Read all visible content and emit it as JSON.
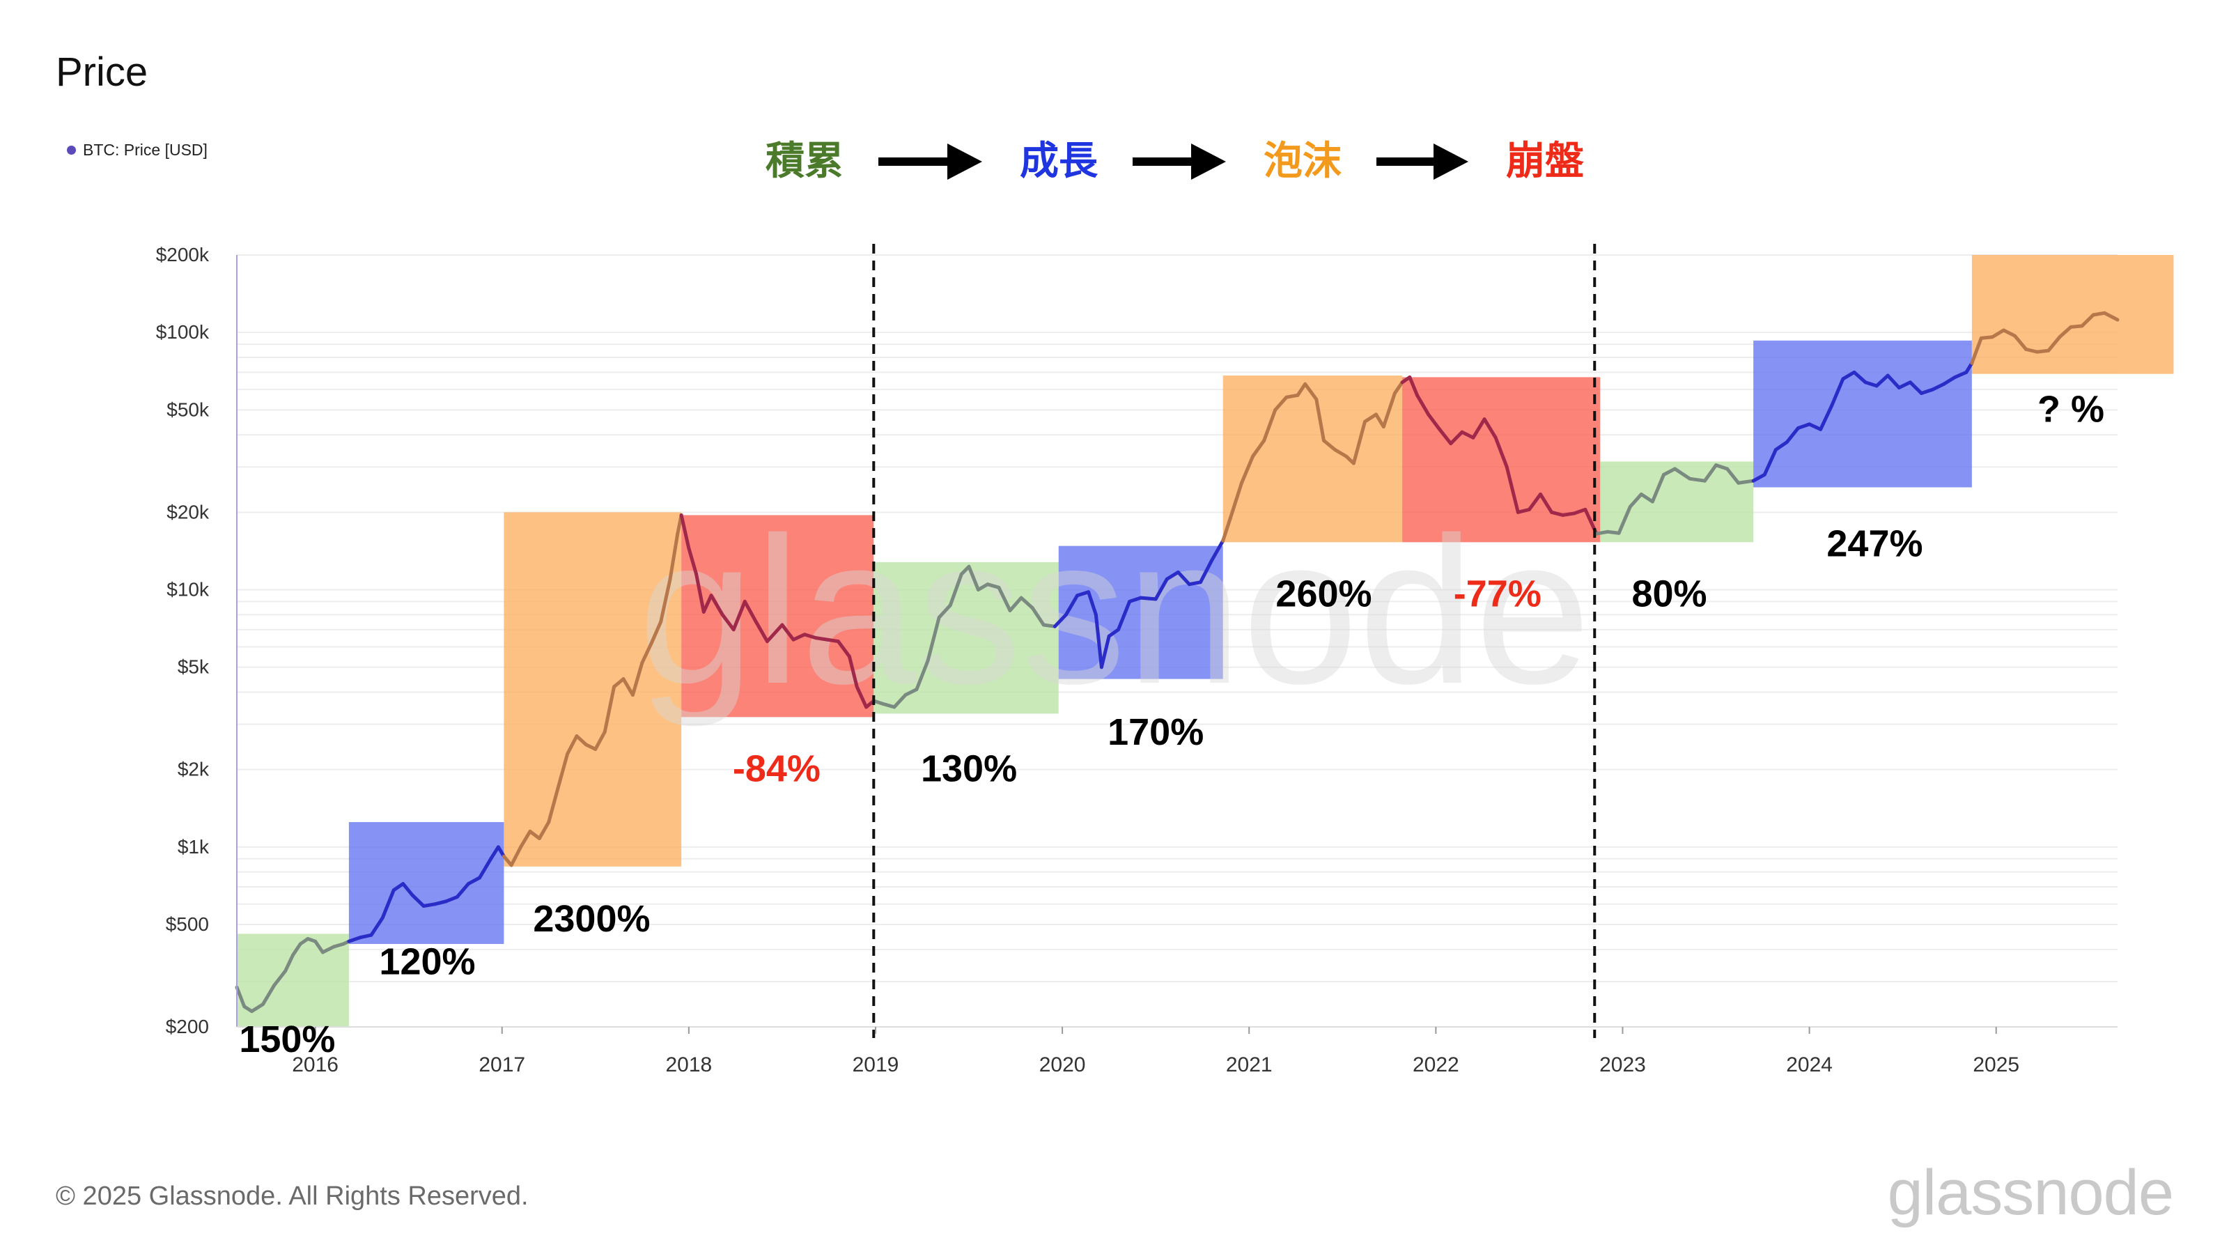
{
  "header": {
    "title": "Price",
    "legend_label": "BTC: Price [USD]",
    "legend_color": "#5b4bb8"
  },
  "footer": {
    "copyright": "© 2025 Glassnode. All Rights Reserved.",
    "brand": "glassnode"
  },
  "chart_data": {
    "type": "line",
    "title": "Price",
    "series_name": "BTC: Price [USD]",
    "y_scale": "log",
    "ylim": [
      200,
      200000
    ],
    "y_ticks": [
      {
        "value": 200,
        "label": "$200"
      },
      {
        "value": 500,
        "label": "$500"
      },
      {
        "value": 1000,
        "label": "$1k"
      },
      {
        "value": 2000,
        "label": "$2k"
      },
      {
        "value": 5000,
        "label": "$5k"
      },
      {
        "value": 10000,
        "label": "$10k"
      },
      {
        "value": 20000,
        "label": "$20k"
      },
      {
        "value": 50000,
        "label": "$50k"
      },
      {
        "value": 100000,
        "label": "$100k"
      },
      {
        "value": 200000,
        "label": "$200k"
      }
    ],
    "xlim": [
      2015.58,
      2025.65
    ],
    "x_ticks": [
      {
        "value": 2016,
        "label": "2016"
      },
      {
        "value": 2017,
        "label": "2017"
      },
      {
        "value": 2018,
        "label": "2018"
      },
      {
        "value": 2019,
        "label": "2019"
      },
      {
        "value": 2020,
        "label": "2020"
      },
      {
        "value": 2021,
        "label": "2021"
      },
      {
        "value": 2022,
        "label": "2022"
      },
      {
        "value": 2023,
        "label": "2023"
      },
      {
        "value": 2024,
        "label": "2024"
      },
      {
        "value": 2025,
        "label": "2025"
      }
    ],
    "phase_legend": [
      {
        "label": "積累",
        "color": "#4a7a2a"
      },
      {
        "label": "成長",
        "color": "#1f35e0"
      },
      {
        "label": "泡沫",
        "color": "#f39a1d"
      },
      {
        "label": "崩盤",
        "color": "#ee2b18"
      }
    ],
    "phase_colors": {
      "accumulation": "#b8e2a0",
      "growth": "#5d6ff0",
      "bubble": "#fcae5a",
      "crash": "#f95a4a"
    },
    "line_colors": {
      "accumulation": "#7a8a80",
      "growth": "#2b2bc8",
      "bubble": "#b7774a",
      "crash": "#a0284a"
    },
    "cycle_dividers": [
      2018.99,
      2022.85
    ],
    "phases": [
      {
        "phase": "accumulation",
        "x0": 2015.58,
        "x1": 2016.18,
        "y_low": 200,
        "y_high": 460,
        "pct": "150%",
        "pct_color": "#000000",
        "label_x": 2015.85,
        "label_y": 160
      },
      {
        "phase": "growth",
        "x0": 2016.18,
        "x1": 2017.01,
        "y_low": 420,
        "y_high": 1250,
        "pct": "120%",
        "pct_color": "#000000",
        "label_x": 2016.6,
        "label_y": 320
      },
      {
        "phase": "bubble",
        "x0": 2017.01,
        "x1": 2017.96,
        "y_low": 840,
        "y_high": 20000,
        "pct": "2300%",
        "pct_color": "#000000",
        "label_x": 2017.48,
        "label_y": 470
      },
      {
        "phase": "crash",
        "x0": 2017.96,
        "x1": 2018.99,
        "y_low": 3200,
        "y_high": 19500,
        "pct": "-84%",
        "pct_color": "#ee2b18",
        "label_x": 2018.47,
        "label_y": 1800
      },
      {
        "phase": "accumulation",
        "x0": 2018.99,
        "x1": 2019.98,
        "y_low": 3300,
        "y_high": 12800,
        "pct": "130%",
        "pct_color": "#000000",
        "label_x": 2019.5,
        "label_y": 1800
      },
      {
        "phase": "growth",
        "x0": 2019.98,
        "x1": 2020.86,
        "y_low": 4500,
        "y_high": 14800,
        "pct": "170%",
        "pct_color": "#000000",
        "label_x": 2020.5,
        "label_y": 2500
      },
      {
        "phase": "bubble",
        "x0": 2020.86,
        "x1": 2021.82,
        "y_low": 15300,
        "y_high": 68000,
        "pct": "260%",
        "pct_color": "#000000",
        "label_x": 2021.4,
        "label_y": 8600
      },
      {
        "phase": "crash",
        "x0": 2021.82,
        "x1": 2022.88,
        "y_low": 15300,
        "y_high": 67000,
        "pct": "-77%",
        "pct_color": "#ee2b18",
        "label_x": 2022.33,
        "label_y": 8600
      },
      {
        "phase": "accumulation",
        "x0": 2022.88,
        "x1": 2023.7,
        "y_low": 15300,
        "y_high": 31500,
        "pct": "80%",
        "pct_color": "#000000",
        "label_x": 2023.25,
        "label_y": 8600
      },
      {
        "phase": "growth",
        "x0": 2023.7,
        "x1": 2024.87,
        "y_low": 25000,
        "y_high": 93000,
        "pct": "247%",
        "pct_color": "#000000",
        "label_x": 2024.35,
        "label_y": 13500
      },
      {
        "phase": "bubble",
        "x0": 2024.87,
        "x1": 2025.95,
        "y_low": 69000,
        "y_high": 200000,
        "pct": "? %",
        "pct_color": "#000000",
        "label_x": 2025.4,
        "label_y": 45000
      }
    ],
    "price_series": [
      {
        "x": 2015.58,
        "y": 285
      },
      {
        "x": 2015.62,
        "y": 240
      },
      {
        "x": 2015.66,
        "y": 230
      },
      {
        "x": 2015.72,
        "y": 245
      },
      {
        "x": 2015.78,
        "y": 290
      },
      {
        "x": 2015.84,
        "y": 330
      },
      {
        "x": 2015.88,
        "y": 380
      },
      {
        "x": 2015.92,
        "y": 420
      },
      {
        "x": 2015.96,
        "y": 440
      },
      {
        "x": 2016.0,
        "y": 430
      },
      {
        "x": 2016.04,
        "y": 390
      },
      {
        "x": 2016.1,
        "y": 410
      },
      {
        "x": 2016.15,
        "y": 420
      },
      {
        "x": 2016.18,
        "y": 430
      },
      {
        "x": 2016.24,
        "y": 445
      },
      {
        "x": 2016.3,
        "y": 455
      },
      {
        "x": 2016.36,
        "y": 530
      },
      {
        "x": 2016.42,
        "y": 680
      },
      {
        "x": 2016.47,
        "y": 720
      },
      {
        "x": 2016.52,
        "y": 650
      },
      {
        "x": 2016.58,
        "y": 590
      },
      {
        "x": 2016.64,
        "y": 600
      },
      {
        "x": 2016.7,
        "y": 615
      },
      {
        "x": 2016.76,
        "y": 640
      },
      {
        "x": 2016.82,
        "y": 720
      },
      {
        "x": 2016.88,
        "y": 760
      },
      {
        "x": 2016.94,
        "y": 900
      },
      {
        "x": 2016.98,
        "y": 1000
      },
      {
        "x": 2017.01,
        "y": 920
      },
      {
        "x": 2017.05,
        "y": 850
      },
      {
        "x": 2017.1,
        "y": 1000
      },
      {
        "x": 2017.15,
        "y": 1150
      },
      {
        "x": 2017.2,
        "y": 1080
      },
      {
        "x": 2017.25,
        "y": 1250
      },
      {
        "x": 2017.3,
        "y": 1700
      },
      {
        "x": 2017.35,
        "y": 2300
      },
      {
        "x": 2017.4,
        "y": 2700
      },
      {
        "x": 2017.45,
        "y": 2500
      },
      {
        "x": 2017.5,
        "y": 2400
      },
      {
        "x": 2017.55,
        "y": 2800
      },
      {
        "x": 2017.6,
        "y": 4200
      },
      {
        "x": 2017.65,
        "y": 4500
      },
      {
        "x": 2017.7,
        "y": 3900
      },
      {
        "x": 2017.75,
        "y": 5200
      },
      {
        "x": 2017.8,
        "y": 6200
      },
      {
        "x": 2017.85,
        "y": 7500
      },
      {
        "x": 2017.9,
        "y": 11000
      },
      {
        "x": 2017.94,
        "y": 16500
      },
      {
        "x": 2017.96,
        "y": 19500
      },
      {
        "x": 2018.0,
        "y": 14500
      },
      {
        "x": 2018.04,
        "y": 11500
      },
      {
        "x": 2018.08,
        "y": 8200
      },
      {
        "x": 2018.12,
        "y": 9500
      },
      {
        "x": 2018.18,
        "y": 8000
      },
      {
        "x": 2018.24,
        "y": 7000
      },
      {
        "x": 2018.3,
        "y": 9000
      },
      {
        "x": 2018.36,
        "y": 7500
      },
      {
        "x": 2018.42,
        "y": 6300
      },
      {
        "x": 2018.5,
        "y": 7300
      },
      {
        "x": 2018.56,
        "y": 6400
      },
      {
        "x": 2018.62,
        "y": 6700
      },
      {
        "x": 2018.68,
        "y": 6500
      },
      {
        "x": 2018.74,
        "y": 6400
      },
      {
        "x": 2018.8,
        "y": 6300
      },
      {
        "x": 2018.86,
        "y": 5500
      },
      {
        "x": 2018.9,
        "y": 4200
      },
      {
        "x": 2018.95,
        "y": 3500
      },
      {
        "x": 2018.99,
        "y": 3700
      },
      {
        "x": 2019.04,
        "y": 3600
      },
      {
        "x": 2019.1,
        "y": 3500
      },
      {
        "x": 2019.16,
        "y": 3900
      },
      {
        "x": 2019.22,
        "y": 4100
      },
      {
        "x": 2019.28,
        "y": 5300
      },
      {
        "x": 2019.34,
        "y": 7800
      },
      {
        "x": 2019.4,
        "y": 8700
      },
      {
        "x": 2019.46,
        "y": 11500
      },
      {
        "x": 2019.5,
        "y": 12300
      },
      {
        "x": 2019.55,
        "y": 10000
      },
      {
        "x": 2019.6,
        "y": 10500
      },
      {
        "x": 2019.66,
        "y": 10200
      },
      {
        "x": 2019.72,
        "y": 8300
      },
      {
        "x": 2019.78,
        "y": 9300
      },
      {
        "x": 2019.84,
        "y": 8500
      },
      {
        "x": 2019.9,
        "y": 7300
      },
      {
        "x": 2019.96,
        "y": 7200
      },
      {
        "x": 2020.02,
        "y": 8000
      },
      {
        "x": 2020.08,
        "y": 9500
      },
      {
        "x": 2020.14,
        "y": 9800
      },
      {
        "x": 2020.18,
        "y": 8000
      },
      {
        "x": 2020.21,
        "y": 5000
      },
      {
        "x": 2020.25,
        "y": 6600
      },
      {
        "x": 2020.3,
        "y": 7000
      },
      {
        "x": 2020.36,
        "y": 9000
      },
      {
        "x": 2020.42,
        "y": 9300
      },
      {
        "x": 2020.5,
        "y": 9200
      },
      {
        "x": 2020.56,
        "y": 11000
      },
      {
        "x": 2020.62,
        "y": 11700
      },
      {
        "x": 2020.68,
        "y": 10500
      },
      {
        "x": 2020.74,
        "y": 10700
      },
      {
        "x": 2020.8,
        "y": 13000
      },
      {
        "x": 2020.86,
        "y": 15500
      },
      {
        "x": 2020.9,
        "y": 19000
      },
      {
        "x": 2020.96,
        "y": 26000
      },
      {
        "x": 2021.02,
        "y": 33000
      },
      {
        "x": 2021.08,
        "y": 38000
      },
      {
        "x": 2021.14,
        "y": 50000
      },
      {
        "x": 2021.2,
        "y": 56000
      },
      {
        "x": 2021.26,
        "y": 57000
      },
      {
        "x": 2021.3,
        "y": 63000
      },
      {
        "x": 2021.36,
        "y": 55000
      },
      {
        "x": 2021.4,
        "y": 38000
      },
      {
        "x": 2021.46,
        "y": 35000
      },
      {
        "x": 2021.52,
        "y": 33000
      },
      {
        "x": 2021.56,
        "y": 31000
      },
      {
        "x": 2021.62,
        "y": 45000
      },
      {
        "x": 2021.68,
        "y": 48000
      },
      {
        "x": 2021.72,
        "y": 43000
      },
      {
        "x": 2021.78,
        "y": 58000
      },
      {
        "x": 2021.82,
        "y": 64000
      },
      {
        "x": 2021.86,
        "y": 67000
      },
      {
        "x": 2021.9,
        "y": 57000
      },
      {
        "x": 2021.96,
        "y": 48000
      },
      {
        "x": 2022.02,
        "y": 42000
      },
      {
        "x": 2022.08,
        "y": 37000
      },
      {
        "x": 2022.14,
        "y": 41000
      },
      {
        "x": 2022.2,
        "y": 39000
      },
      {
        "x": 2022.26,
        "y": 46000
      },
      {
        "x": 2022.32,
        "y": 39000
      },
      {
        "x": 2022.38,
        "y": 30000
      },
      {
        "x": 2022.44,
        "y": 20000
      },
      {
        "x": 2022.5,
        "y": 20500
      },
      {
        "x": 2022.56,
        "y": 23500
      },
      {
        "x": 2022.62,
        "y": 20000
      },
      {
        "x": 2022.68,
        "y": 19500
      },
      {
        "x": 2022.74,
        "y": 19800
      },
      {
        "x": 2022.8,
        "y": 20500
      },
      {
        "x": 2022.86,
        "y": 16500
      },
      {
        "x": 2022.92,
        "y": 16800
      },
      {
        "x": 2022.98,
        "y": 16600
      },
      {
        "x": 2023.04,
        "y": 21000
      },
      {
        "x": 2023.1,
        "y": 23500
      },
      {
        "x": 2023.16,
        "y": 22000
      },
      {
        "x": 2023.22,
        "y": 28000
      },
      {
        "x": 2023.28,
        "y": 29500
      },
      {
        "x": 2023.36,
        "y": 27000
      },
      {
        "x": 2023.44,
        "y": 26500
      },
      {
        "x": 2023.5,
        "y": 30500
      },
      {
        "x": 2023.56,
        "y": 29500
      },
      {
        "x": 2023.62,
        "y": 26000
      },
      {
        "x": 2023.7,
        "y": 26500
      },
      {
        "x": 2023.76,
        "y": 28000
      },
      {
        "x": 2023.82,
        "y": 35000
      },
      {
        "x": 2023.88,
        "y": 37500
      },
      {
        "x": 2023.94,
        "y": 42500
      },
      {
        "x": 2024.0,
        "y": 44000
      },
      {
        "x": 2024.06,
        "y": 42000
      },
      {
        "x": 2024.12,
        "y": 52000
      },
      {
        "x": 2024.18,
        "y": 66000
      },
      {
        "x": 2024.24,
        "y": 70000
      },
      {
        "x": 2024.3,
        "y": 64000
      },
      {
        "x": 2024.36,
        "y": 62000
      },
      {
        "x": 2024.42,
        "y": 68000
      },
      {
        "x": 2024.48,
        "y": 61000
      },
      {
        "x": 2024.54,
        "y": 64000
      },
      {
        "x": 2024.6,
        "y": 58000
      },
      {
        "x": 2024.66,
        "y": 60000
      },
      {
        "x": 2024.72,
        "y": 63000
      },
      {
        "x": 2024.78,
        "y": 67000
      },
      {
        "x": 2024.84,
        "y": 70000
      },
      {
        "x": 2024.87,
        "y": 76000
      },
      {
        "x": 2024.92,
        "y": 95000
      },
      {
        "x": 2024.98,
        "y": 96000
      },
      {
        "x": 2025.04,
        "y": 102000
      },
      {
        "x": 2025.1,
        "y": 97000
      },
      {
        "x": 2025.16,
        "y": 86000
      },
      {
        "x": 2025.22,
        "y": 84000
      },
      {
        "x": 2025.28,
        "y": 85000
      },
      {
        "x": 2025.34,
        "y": 96000
      },
      {
        "x": 2025.4,
        "y": 105000
      },
      {
        "x": 2025.46,
        "y": 106000
      },
      {
        "x": 2025.52,
        "y": 117000
      },
      {
        "x": 2025.58,
        "y": 119000
      },
      {
        "x": 2025.65,
        "y": 112000
      }
    ]
  }
}
